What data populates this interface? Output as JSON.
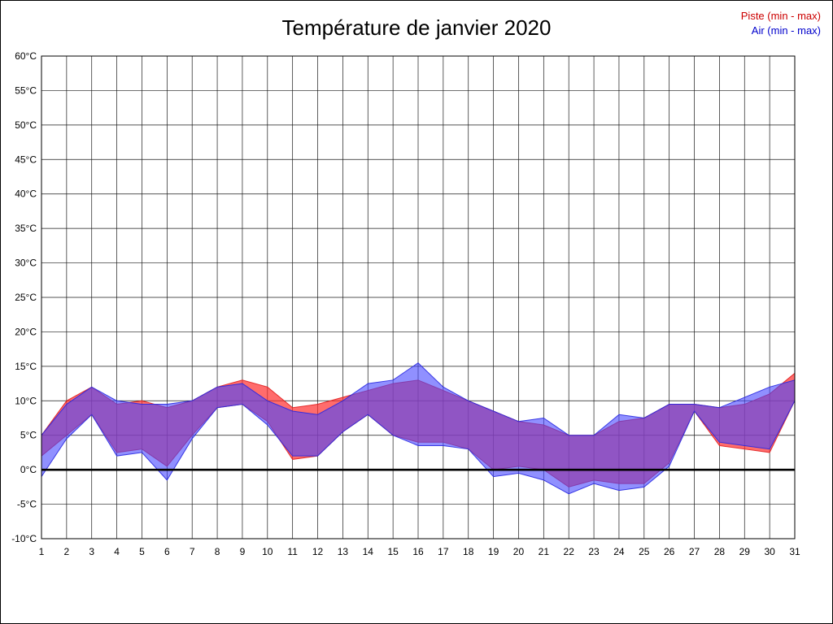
{
  "title": "Température de janvier 2020",
  "legend": [
    {
      "label": "Piste (min - max)",
      "color": "#cc0000"
    },
    {
      "label": "Air (min - max)",
      "color": "#0000cc"
    }
  ],
  "chart_data": {
    "type": "area",
    "title": "Température de janvier 2020",
    "x": [
      1,
      2,
      3,
      4,
      5,
      6,
      7,
      8,
      9,
      10,
      11,
      12,
      13,
      14,
      15,
      16,
      17,
      18,
      19,
      20,
      21,
      22,
      23,
      24,
      25,
      26,
      27,
      28,
      29,
      30,
      31
    ],
    "xlabel": "",
    "ylabel": "",
    "ylim": [
      -10,
      60
    ],
    "ytick_step": 5,
    "ylabel_suffix": "°C",
    "grid": true,
    "zero_line": true,
    "legend_position": "top-right",
    "series": [
      {
        "name": "Piste (min - max)",
        "fill": "rgba(255,45,45,0.70)",
        "stroke": "rgba(225,30,30,0.9)",
        "min": [
          2,
          5,
          8,
          2.5,
          3,
          0.5,
          5,
          9,
          9.5,
          7,
          1.5,
          2,
          5.5,
          8,
          5,
          4,
          4,
          3,
          0,
          0.5,
          0,
          -2.5,
          -1.5,
          -2,
          -2,
          1,
          8.5,
          3.5,
          3,
          2.5,
          10
        ],
        "max": [
          5,
          10,
          12,
          9.5,
          10,
          9,
          10,
          12,
          13,
          12,
          9,
          9.5,
          10.5,
          11.5,
          12.5,
          13,
          11.5,
          10,
          8.5,
          7,
          6.5,
          5,
          5,
          7,
          7.5,
          9.5,
          9.5,
          9,
          9.5,
          11,
          14
        ]
      },
      {
        "name": "Air (min - max)",
        "fill": "rgba(70,70,255,0.60)",
        "stroke": "rgba(40,40,225,0.9)",
        "min": [
          -1,
          4.5,
          8,
          2,
          2.5,
          -1.5,
          4.5,
          9,
          9.5,
          6.5,
          2,
          2,
          5.5,
          8,
          5,
          3.5,
          3.5,
          3,
          -1,
          -0.5,
          -1.5,
          -3.5,
          -2,
          -3,
          -2.5,
          0.5,
          8.5,
          4,
          3.5,
          3,
          10
        ],
        "max": [
          5,
          9.5,
          12,
          10,
          9.5,
          9.5,
          10,
          12,
          12.5,
          10,
          8.5,
          8,
          10,
          12.5,
          13,
          15.5,
          12,
          10,
          8.5,
          7,
          7.5,
          5,
          5,
          8,
          7.5,
          9.5,
          9.5,
          9,
          10.5,
          12,
          13
        ]
      }
    ]
  }
}
